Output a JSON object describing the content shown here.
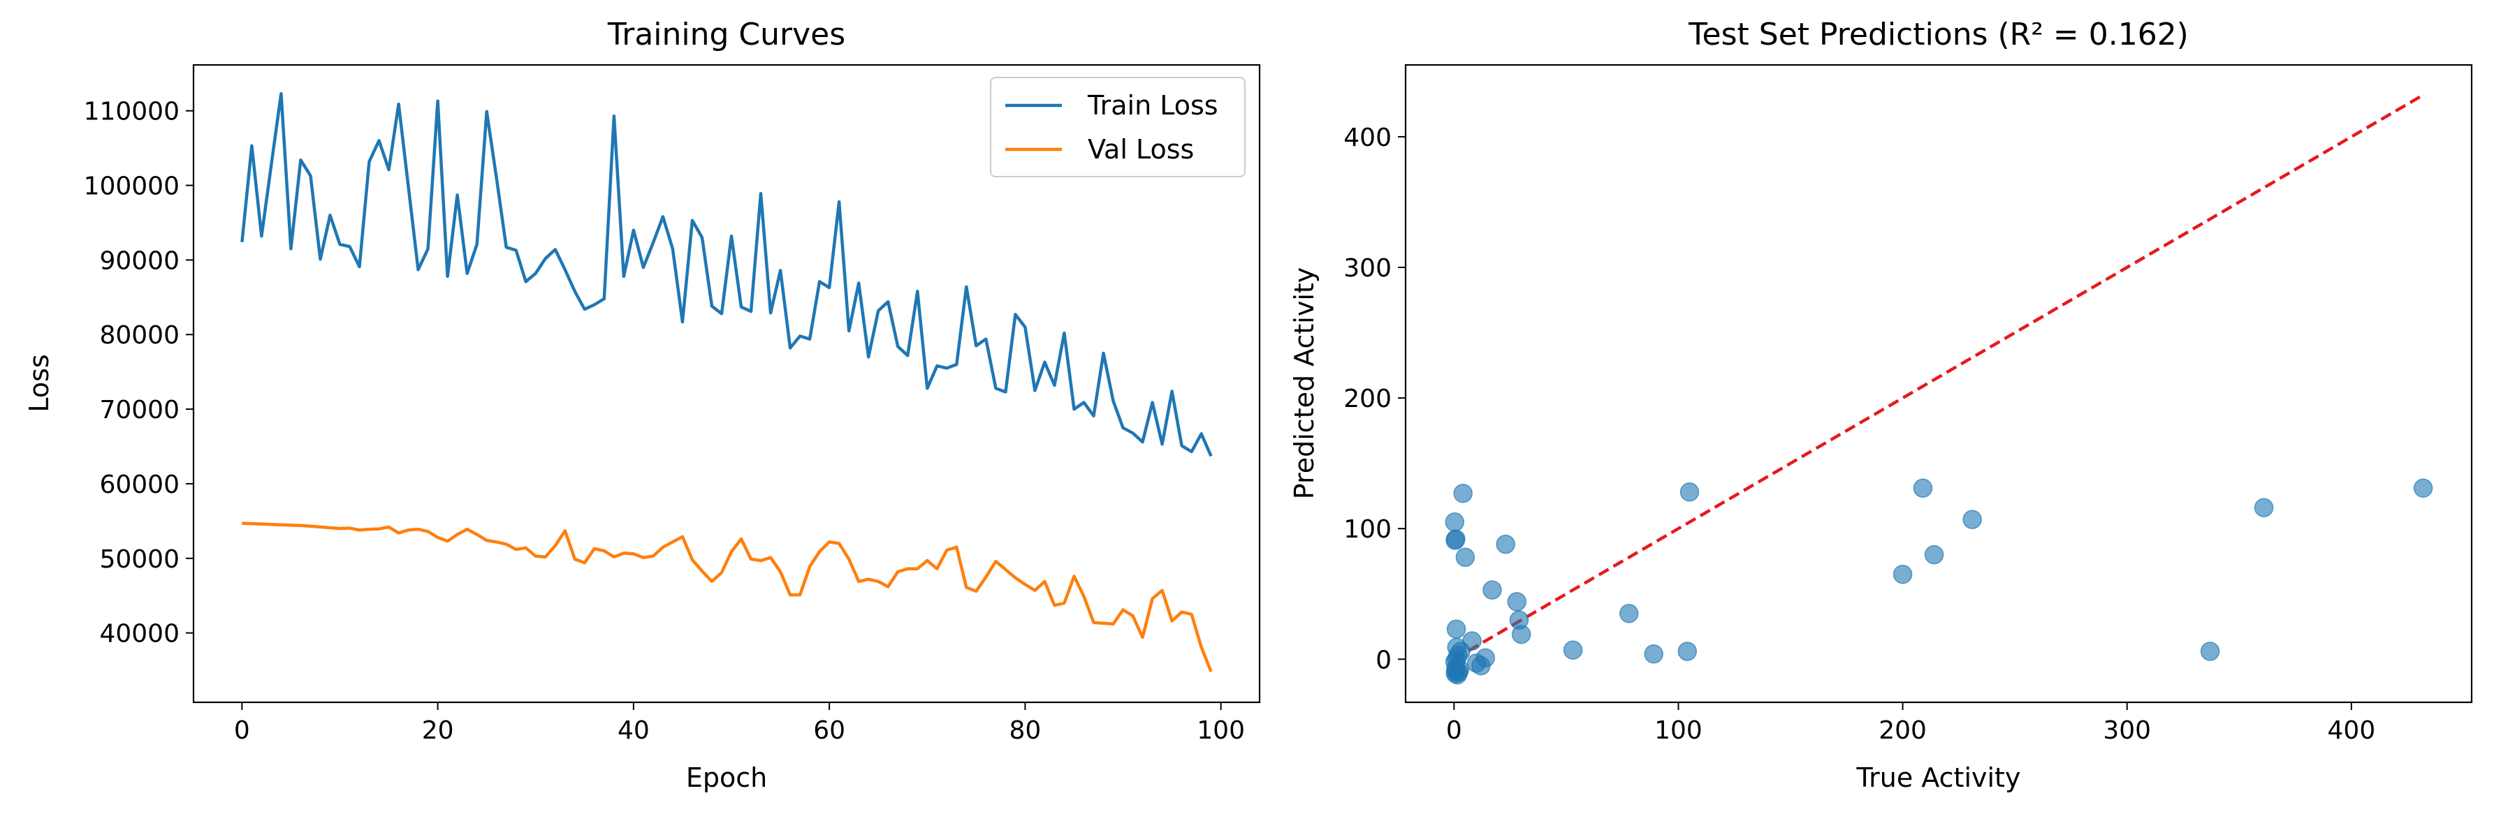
{
  "colors": {
    "train": "#1f77b4",
    "val": "#ff7f0e",
    "scatter": "#1f77b4",
    "diagonal": "#e8191c",
    "axes": "#000000",
    "background": "#ffffff"
  },
  "chart_data": [
    {
      "type": "line",
      "title": "Training Curves",
      "xlabel": "Epoch",
      "ylabel": "Loss",
      "xlim": [
        -4.95,
        103.95
      ],
      "ylim": [
        30700,
        116150
      ],
      "xticks": [
        0,
        20,
        40,
        60,
        80,
        100
      ],
      "yticks": [
        40000,
        50000,
        60000,
        70000,
        80000,
        90000,
        100000,
        110000
      ],
      "xtick_labels": [
        "0",
        "20",
        "40",
        "60",
        "80",
        "100"
      ],
      "ytick_labels": [
        "40000",
        "50000",
        "60000",
        "70000",
        "80000",
        "90000",
        "100000",
        "110000"
      ],
      "grid": false,
      "legend": "top-right",
      "x": [
        0,
        1,
        2,
        3,
        4,
        5,
        6,
        7,
        8,
        9,
        10,
        11,
        12,
        13,
        14,
        15,
        16,
        17,
        18,
        19,
        20,
        21,
        22,
        23,
        24,
        25,
        26,
        27,
        28,
        29,
        30,
        31,
        32,
        33,
        34,
        35,
        36,
        37,
        38,
        39,
        40,
        41,
        42,
        43,
        44,
        45,
        46,
        47,
        48,
        49,
        50,
        51,
        52,
        53,
        54,
        55,
        56,
        57,
        58,
        59,
        60,
        61,
        62,
        63,
        64,
        65,
        66,
        67,
        68,
        69,
        70,
        71,
        72,
        73,
        74,
        75,
        76,
        77,
        78,
        79,
        80,
        81,
        82,
        83,
        84,
        85,
        86,
        87,
        88,
        89,
        90,
        91,
        92,
        93,
        94,
        95,
        96,
        97,
        98,
        99
      ],
      "series": [
        {
          "name": "Train Loss",
          "values": [
            92400,
            105300,
            93200,
            102800,
            112300,
            91500,
            103400,
            101300,
            90100,
            96000,
            92100,
            91800,
            89100,
            103200,
            106000,
            102100,
            110900,
            99800,
            88700,
            91500,
            111300,
            87800,
            98700,
            88200,
            92100,
            109900,
            101000,
            91700,
            91300,
            87100,
            88200,
            90200,
            91400,
            88700,
            85800,
            83400,
            84000,
            84800,
            109300,
            87800,
            94000,
            89000,
            92300,
            95800,
            91500,
            81700,
            95300,
            93000,
            83800,
            82800,
            93200,
            83700,
            83100,
            98900,
            82900,
            88600,
            78200,
            79800,
            79400,
            87100,
            86300,
            97800,
            80500,
            86900,
            77000,
            83200,
            84400,
            78400,
            77200,
            85800,
            72800,
            75800,
            75500,
            76000,
            86400,
            78500,
            79400,
            72800,
            72300,
            82700,
            81000,
            72500,
            76300,
            73200,
            80200,
            70000,
            70900,
            69100,
            77500,
            71100,
            67500,
            66800,
            65600,
            70900,
            65300,
            72400,
            65100,
            64300,
            66700,
            63700
          ]
        },
        {
          "name": "Val Loss",
          "values": [
            54700,
            54650,
            54600,
            54550,
            54500,
            54450,
            54400,
            54300,
            54200,
            54100,
            54000,
            54050,
            53800,
            53900,
            53950,
            54200,
            53400,
            53800,
            53900,
            53600,
            52800,
            52300,
            53200,
            53900,
            53200,
            52400,
            52200,
            51900,
            51200,
            51400,
            50300,
            50200,
            51700,
            53700,
            49900,
            49400,
            51300,
            51000,
            50200,
            50700,
            50600,
            50100,
            50300,
            51500,
            52200,
            52900,
            49800,
            48300,
            46900,
            48100,
            50900,
            52600,
            49900,
            49700,
            50100,
            48200,
            45100,
            45100,
            48900,
            50900,
            52200,
            52000,
            49900,
            46900,
            47200,
            46900,
            46200,
            48200,
            48600,
            48600,
            49700,
            48600,
            51100,
            51500,
            46100,
            45600,
            47500,
            49600,
            48500,
            47400,
            46500,
            45700,
            46900,
            43700,
            44000,
            47600,
            44900,
            41400,
            41300,
            41200,
            43100,
            42300,
            39400,
            44600,
            45700,
            41600,
            42800,
            42500,
            38100,
            34800
          ]
        }
      ]
    },
    {
      "type": "scatter",
      "title": "Test Set Predictions (R² = 0.162)",
      "xlabel": "True Activity",
      "ylabel": "Predicted Activity",
      "xlim": [
        -21.6,
        453.6
      ],
      "ylim": [
        -33,
        455
      ],
      "xticks": [
        0,
        100,
        200,
        300,
        400
      ],
      "yticks": [
        0,
        100,
        200,
        300,
        400
      ],
      "xtick_labels": [
        "0",
        "100",
        "200",
        "300",
        "400"
      ],
      "ytick_labels": [
        "0",
        "100",
        "200",
        "300",
        "400"
      ],
      "grid": false,
      "diagonal": [
        [
          0,
          0
        ],
        [
          432,
          432
        ]
      ],
      "x": [
        0.3,
        0.5,
        0.8,
        1,
        1.2,
        2,
        2.5,
        3,
        4,
        5,
        8,
        10,
        12,
        14,
        17,
        23,
        28,
        29,
        30,
        53,
        78,
        89,
        104,
        105,
        200,
        209,
        214,
        231,
        337,
        361,
        432,
        0.6,
        1.5,
        0.9,
        0.4,
        1.8,
        1.1,
        0.7
      ],
      "y": [
        105,
        91,
        92,
        23,
        9,
        -10,
        -8,
        6,
        127,
        78,
        14,
        -3,
        -5,
        1,
        53,
        88,
        44,
        30,
        19,
        7,
        35,
        4,
        6,
        128,
        65,
        131,
        80,
        107,
        6,
        116,
        131,
        -11,
        -12,
        -7,
        -2,
        3,
        0,
        -9
      ]
    }
  ]
}
